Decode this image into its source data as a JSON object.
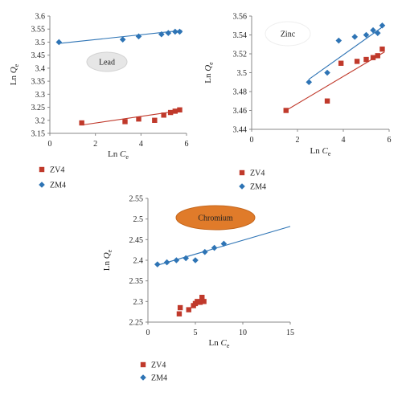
{
  "chart_data": [
    {
      "type": "scatter",
      "title": "",
      "annotation": "Lead",
      "badge_color": "#e6e6e6",
      "xlabel": "Ln",
      "xlabel_sub": "C",
      "xlabel_subscript": "e",
      "ylabel": "Ln",
      "ylabel_sub": "Q",
      "ylabel_subscript": "e",
      "xlim": [
        0,
        6
      ],
      "ylim": [
        3.15,
        3.6
      ],
      "xticks": [
        0,
        2,
        4,
        6
      ],
      "yticks": [
        3.15,
        3.2,
        3.25,
        3.3,
        3.35,
        3.4,
        3.45,
        3.5,
        3.55,
        3.6
      ],
      "ytick_labels": [
        "3.15",
        "3.2",
        "3.25",
        "3.3",
        "3.35",
        "3.4",
        "3.45",
        "3.5",
        "3.55",
        "3.6"
      ],
      "legend_position": "below",
      "series": [
        {
          "name": "ZV4",
          "marker": "square",
          "color": "#c0392b",
          "x": [
            1.4,
            3.3,
            3.9,
            4.6,
            5.0,
            5.3,
            5.5,
            5.7
          ],
          "y": [
            3.19,
            3.195,
            3.205,
            3.2,
            3.22,
            3.23,
            3.235,
            3.24
          ],
          "fit": [
            [
              1.4,
              3.182
            ],
            [
              5.8,
              3.238
            ]
          ]
        },
        {
          "name": "ZM4",
          "marker": "diamond",
          "color": "#2e74b5",
          "x": [
            0.4,
            3.2,
            3.9,
            4.9,
            5.2,
            5.5,
            5.7
          ],
          "y": [
            3.5,
            3.51,
            3.522,
            3.53,
            3.535,
            3.54,
            3.54
          ],
          "fit": [
            [
              0.4,
              3.495
            ],
            [
              5.8,
              3.545
            ]
          ]
        }
      ]
    },
    {
      "type": "scatter",
      "title": "",
      "annotation": "Zinc",
      "badge_color": "#ffffff",
      "xlabel": "Ln",
      "xlabel_sub": "C",
      "xlabel_subscript": "e",
      "ylabel": "Ln",
      "ylabel_sub": "Q",
      "ylabel_subscript": "e",
      "xlim": [
        0,
        6
      ],
      "ylim": [
        3.44,
        3.56
      ],
      "xticks": [
        0,
        2,
        4,
        6
      ],
      "yticks": [
        3.44,
        3.46,
        3.48,
        3.5,
        3.52,
        3.54,
        3.56
      ],
      "ytick_labels": [
        "3.44",
        "3.46",
        "3.48",
        "3.5",
        "3.52",
        "3.54",
        "3.56"
      ],
      "legend_position": "below",
      "series": [
        {
          "name": "ZV4",
          "marker": "square",
          "color": "#c0392b",
          "x": [
            1.5,
            3.3,
            3.9,
            4.6,
            5.0,
            5.3,
            5.5,
            5.7
          ],
          "y": [
            3.46,
            3.47,
            3.51,
            3.512,
            3.514,
            3.516,
            3.518,
            3.525
          ],
          "fit": [
            [
              1.5,
              3.46
            ],
            [
              5.8,
              3.522
            ]
          ]
        },
        {
          "name": "ZM4",
          "marker": "diamond",
          "color": "#2e74b5",
          "x": [
            2.5,
            3.3,
            3.8,
            4.5,
            5.0,
            5.3,
            5.5,
            5.7
          ],
          "y": [
            3.49,
            3.5,
            3.534,
            3.538,
            3.54,
            3.545,
            3.542,
            3.55
          ],
          "fit": [
            [
              2.5,
              3.493
            ],
            [
              5.8,
              3.55
            ]
          ]
        }
      ]
    },
    {
      "type": "scatter",
      "title": "",
      "annotation": "Chromium",
      "badge_color": "#e07b2a",
      "xlabel": "Ln",
      "xlabel_sub": "C",
      "xlabel_subscript": "e",
      "ylabel": "Ln",
      "ylabel_sub": "Q",
      "ylabel_subscript": "e",
      "xlim": [
        0,
        15
      ],
      "ylim": [
        2.25,
        2.55
      ],
      "xticks": [
        0,
        5,
        10,
        15
      ],
      "yticks": [
        2.25,
        2.3,
        2.35,
        2.4,
        2.45,
        2.5,
        2.55
      ],
      "ytick_labels": [
        "2.25",
        "2.3",
        "2.35",
        "2.4",
        "2.45",
        "2.5",
        "2.55"
      ],
      "legend_position": "below",
      "series": [
        {
          "name": "ZV4",
          "marker": "square",
          "color": "#c0392b",
          "x": [
            3.3,
            3.4,
            4.3,
            4.8,
            5.0,
            5.2,
            5.5,
            5.7,
            5.9
          ],
          "y": [
            2.27,
            2.285,
            2.28,
            2.29,
            2.295,
            2.3,
            2.298,
            2.31,
            2.3
          ],
          "fit": null
        },
        {
          "name": "ZM4",
          "marker": "diamond",
          "color": "#2e74b5",
          "x": [
            1.0,
            2.0,
            3.0,
            4.0,
            5.0,
            6.0,
            7.0,
            8.0
          ],
          "y": [
            2.39,
            2.395,
            2.4,
            2.405,
            2.4,
            2.42,
            2.43,
            2.44
          ],
          "fit": [
            [
              1.0,
              2.388
            ],
            [
              15.0,
              2.482
            ]
          ]
        }
      ]
    }
  ]
}
